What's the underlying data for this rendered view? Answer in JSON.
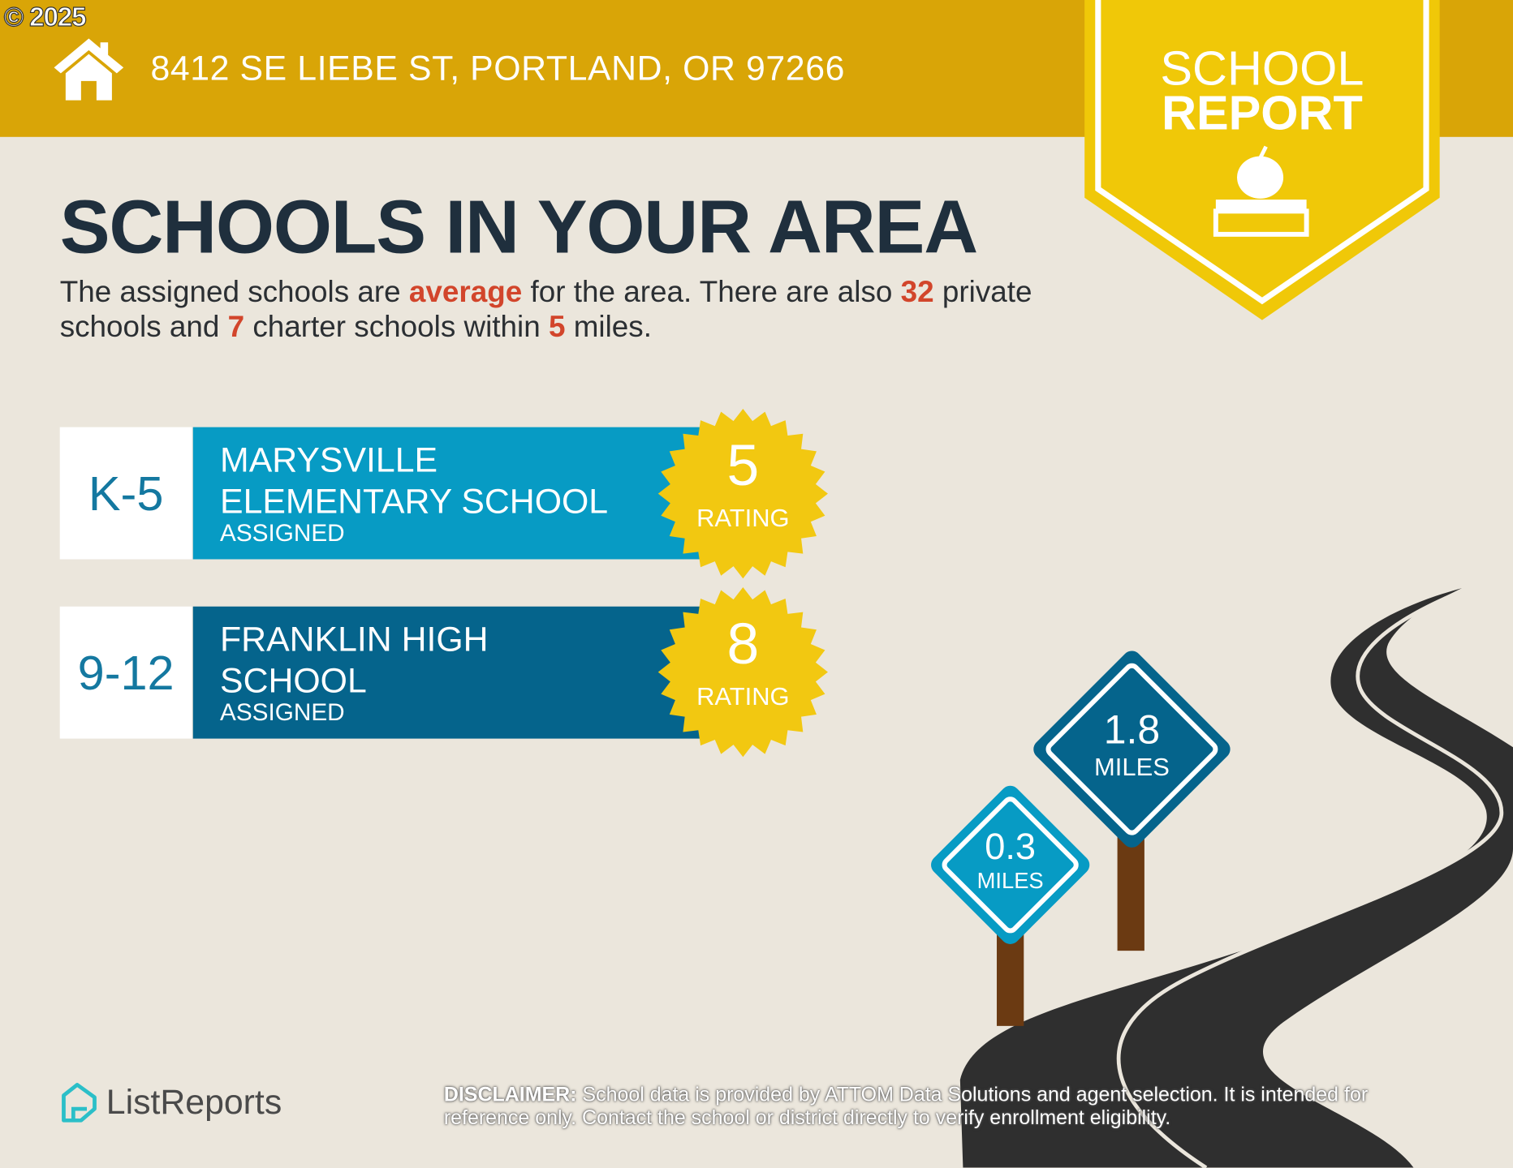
{
  "copyright": "© 2025",
  "header": {
    "address": "8412 SE LIEBE ST, PORTLAND, OR 97266"
  },
  "badge": {
    "line1": "SCHOOL",
    "line2": "REPORT"
  },
  "title": "SCHOOLS IN YOUR AREA",
  "summary": {
    "p1": "The assigned schools are ",
    "quality": "average",
    "p2": " for the area. There are also ",
    "private_count": "32",
    "p3": " private schools and ",
    "charter_count": "7",
    "p4": " charter schools within ",
    "radius": "5",
    "p5": " miles."
  },
  "schools": [
    {
      "grades": "K-5",
      "name": "MARYSVILLE ELEMENTARY SCHOOL",
      "status": "ASSIGNED",
      "rating": "5",
      "rating_label": "RATING",
      "color": "#079bc4",
      "distance": "0.3",
      "distance_unit": "MILES"
    },
    {
      "grades": "9-12",
      "name": "FRANKLIN HIGH SCHOOL",
      "status": "ASSIGNED",
      "rating": "8",
      "rating_label": "RATING",
      "color": "#05648c",
      "distance": "1.8",
      "distance_unit": "MILES"
    }
  ],
  "colors": {
    "header": "#d9a507",
    "badge": "#f0c808",
    "accent": "#d2452b",
    "rating_burst": "#f2c811"
  },
  "footer": {
    "logo": "ListReports",
    "disclaimer_label": "DISCLAIMER:",
    "disclaimer_text": " School data is provided by ATTOM Data Solutions and agent selection. It is intended for reference only. Contact the school or district directly to verify enrollment eligibility."
  }
}
